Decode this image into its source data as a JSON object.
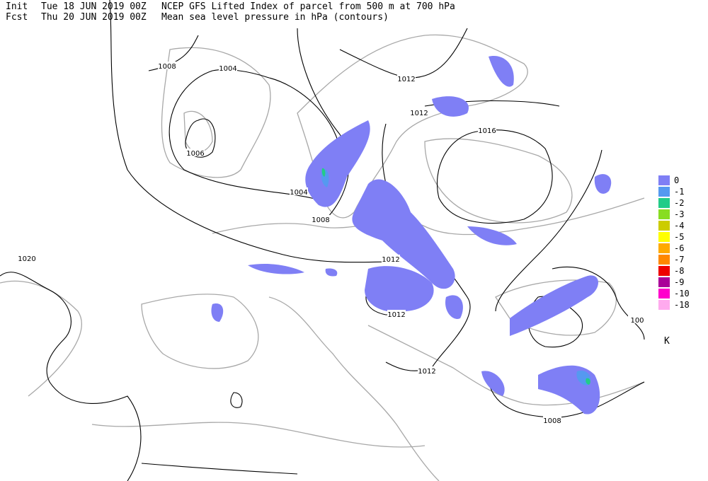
{
  "header": {
    "init_label": "Init",
    "init_time": "Tue 18 JUN 2019 00Z",
    "title": "NCEP GFS Lifted Index of parcel from 500 m at 700 hPa",
    "fcst_label": "Fcst",
    "fcst_time": "Thu 20 JUN 2019 00Z",
    "subtitle": "Mean sea level pressure in hPa (contours)"
  },
  "legend": {
    "entries": [
      {
        "label": 0,
        "color": "#7f7ff5"
      },
      {
        "label": -1,
        "color": "#5599f0"
      },
      {
        "label": -2,
        "color": "#22cc88"
      },
      {
        "label": -3,
        "color": "#88dd22"
      },
      {
        "label": -4,
        "color": "#cccc00"
      },
      {
        "label": -5,
        "color": "#ffff00"
      },
      {
        "label": -6,
        "color": "#ffaa00"
      },
      {
        "label": -7,
        "color": "#ff8800"
      },
      {
        "label": -8,
        "color": "#ee0000"
      },
      {
        "label": -9,
        "color": "#aa0099"
      },
      {
        "label": -10,
        "color": "#ff00cc"
      },
      {
        "label": -18,
        "color": "#ffaaee"
      }
    ],
    "unit": "K"
  },
  "contour_labels": [
    "1008",
    "1004",
    "1006",
    "1004",
    "1008",
    "1012",
    "1012",
    "1016",
    "1012",
    "1012",
    "1012",
    "1020",
    "1008",
    "100"
  ]
}
